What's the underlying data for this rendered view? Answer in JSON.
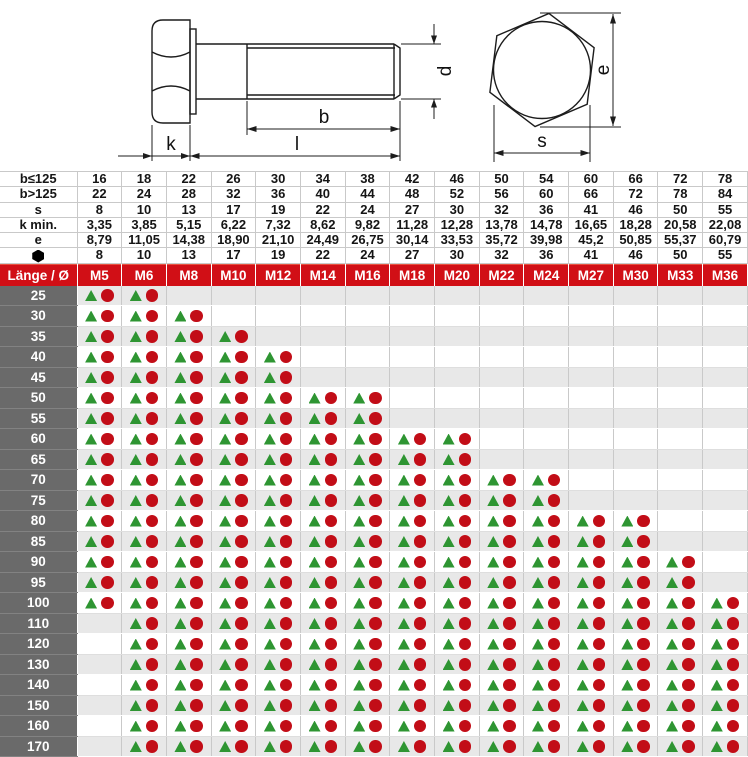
{
  "drawing": {
    "labels": {
      "k": "k",
      "b": "b",
      "l": "l",
      "d": "d",
      "e": "e",
      "s": "s"
    }
  },
  "dims_table": {
    "rows": [
      {
        "label": "b≤125",
        "values": [
          "16",
          "18",
          "22",
          "26",
          "30",
          "34",
          "38",
          "42",
          "46",
          "50",
          "54",
          "60",
          "66",
          "72",
          "78"
        ]
      },
      {
        "label": "b>125",
        "values": [
          "22",
          "24",
          "28",
          "32",
          "36",
          "40",
          "44",
          "48",
          "52",
          "56",
          "60",
          "66",
          "72",
          "78",
          "84"
        ]
      },
      {
        "label": "s",
        "values": [
          "8",
          "10",
          "13",
          "17",
          "19",
          "22",
          "24",
          "27",
          "30",
          "32",
          "36",
          "41",
          "46",
          "50",
          "55"
        ]
      },
      {
        "label": "k min.",
        "values": [
          "3,35",
          "3,85",
          "5,15",
          "6,22",
          "7,32",
          "8,62",
          "9,82",
          "11,28",
          "12,28",
          "13,78",
          "14,78",
          "16,65",
          "18,28",
          "20,58",
          "22,08"
        ]
      },
      {
        "label": "e",
        "values": [
          "8,79",
          "11,05",
          "14,38",
          "18,90",
          "21,10",
          "24,49",
          "26,75",
          "30,14",
          "33,53",
          "35,72",
          "39,98",
          "45,2",
          "50,85",
          "55,37",
          "60,79"
        ]
      },
      {
        "label": "hexagon-icon",
        "icon": true,
        "values": [
          "8",
          "10",
          "13",
          "17",
          "19",
          "22",
          "24",
          "27",
          "30",
          "32",
          "36",
          "41",
          "46",
          "50",
          "55"
        ]
      }
    ]
  },
  "matrix": {
    "header_label": "Länge / Ø",
    "columns": [
      "M5",
      "M6",
      "M8",
      "M10",
      "M12",
      "M14",
      "M16",
      "M18",
      "M20",
      "M22",
      "M24",
      "M27",
      "M30",
      "M33",
      "M36"
    ],
    "rows": [
      {
        "length": "25",
        "cells": [
          1,
          1,
          0,
          0,
          0,
          0,
          0,
          0,
          0,
          0,
          0,
          0,
          0,
          0,
          0
        ]
      },
      {
        "length": "30",
        "cells": [
          1,
          1,
          1,
          0,
          0,
          0,
          0,
          0,
          0,
          0,
          0,
          0,
          0,
          0,
          0
        ]
      },
      {
        "length": "35",
        "cells": [
          1,
          1,
          1,
          1,
          0,
          0,
          0,
          0,
          0,
          0,
          0,
          0,
          0,
          0,
          0
        ]
      },
      {
        "length": "40",
        "cells": [
          1,
          1,
          1,
          1,
          1,
          0,
          0,
          0,
          0,
          0,
          0,
          0,
          0,
          0,
          0
        ]
      },
      {
        "length": "45",
        "cells": [
          1,
          1,
          1,
          1,
          1,
          0,
          0,
          0,
          0,
          0,
          0,
          0,
          0,
          0,
          0
        ]
      },
      {
        "length": "50",
        "cells": [
          1,
          1,
          1,
          1,
          1,
          1,
          1,
          0,
          0,
          0,
          0,
          0,
          0,
          0,
          0
        ]
      },
      {
        "length": "55",
        "cells": [
          1,
          1,
          1,
          1,
          1,
          1,
          1,
          0,
          0,
          0,
          0,
          0,
          0,
          0,
          0
        ]
      },
      {
        "length": "60",
        "cells": [
          1,
          1,
          1,
          1,
          1,
          1,
          1,
          1,
          1,
          0,
          0,
          0,
          0,
          0,
          0
        ]
      },
      {
        "length": "65",
        "cells": [
          1,
          1,
          1,
          1,
          1,
          1,
          1,
          1,
          1,
          0,
          0,
          0,
          0,
          0,
          0
        ]
      },
      {
        "length": "70",
        "cells": [
          1,
          1,
          1,
          1,
          1,
          1,
          1,
          1,
          1,
          1,
          1,
          0,
          0,
          0,
          0
        ]
      },
      {
        "length": "75",
        "cells": [
          1,
          1,
          1,
          1,
          1,
          1,
          1,
          1,
          1,
          1,
          1,
          0,
          0,
          0,
          0
        ]
      },
      {
        "length": "80",
        "cells": [
          1,
          1,
          1,
          1,
          1,
          1,
          1,
          1,
          1,
          1,
          1,
          1,
          1,
          0,
          0
        ]
      },
      {
        "length": "85",
        "cells": [
          1,
          1,
          1,
          1,
          1,
          1,
          1,
          1,
          1,
          1,
          1,
          1,
          1,
          0,
          0
        ]
      },
      {
        "length": "90",
        "cells": [
          1,
          1,
          1,
          1,
          1,
          1,
          1,
          1,
          1,
          1,
          1,
          1,
          1,
          1,
          0
        ]
      },
      {
        "length": "95",
        "cells": [
          1,
          1,
          1,
          1,
          1,
          1,
          1,
          1,
          1,
          1,
          1,
          1,
          1,
          1,
          0
        ]
      },
      {
        "length": "100",
        "cells": [
          1,
          1,
          1,
          1,
          1,
          1,
          1,
          1,
          1,
          1,
          1,
          1,
          1,
          1,
          1
        ]
      },
      {
        "length": "110",
        "cells": [
          0,
          1,
          1,
          1,
          1,
          1,
          1,
          1,
          1,
          1,
          1,
          1,
          1,
          1,
          1
        ]
      },
      {
        "length": "120",
        "cells": [
          0,
          1,
          1,
          1,
          1,
          1,
          1,
          1,
          1,
          1,
          1,
          1,
          1,
          1,
          1
        ]
      },
      {
        "length": "130",
        "cells": [
          0,
          1,
          1,
          1,
          1,
          1,
          1,
          1,
          1,
          1,
          1,
          1,
          1,
          1,
          1
        ]
      },
      {
        "length": "140",
        "cells": [
          0,
          1,
          1,
          1,
          1,
          1,
          1,
          1,
          1,
          1,
          1,
          1,
          1,
          1,
          1
        ]
      },
      {
        "length": "150",
        "cells": [
          0,
          1,
          1,
          1,
          1,
          1,
          1,
          1,
          1,
          1,
          1,
          1,
          1,
          1,
          1
        ]
      },
      {
        "length": "160",
        "cells": [
          0,
          1,
          1,
          1,
          1,
          1,
          1,
          1,
          1,
          1,
          1,
          1,
          1,
          1,
          1
        ]
      },
      {
        "length": "170",
        "cells": [
          0,
          1,
          1,
          1,
          1,
          1,
          1,
          1,
          1,
          1,
          1,
          1,
          1,
          1,
          1
        ]
      }
    ]
  },
  "colors": {
    "header_red": "#d10f16",
    "row_label_gray": "#6a6a6a",
    "row_alt_gray": "#e8e8e8",
    "triangle_green": "#2e9532",
    "circle_red": "#c20d17"
  }
}
